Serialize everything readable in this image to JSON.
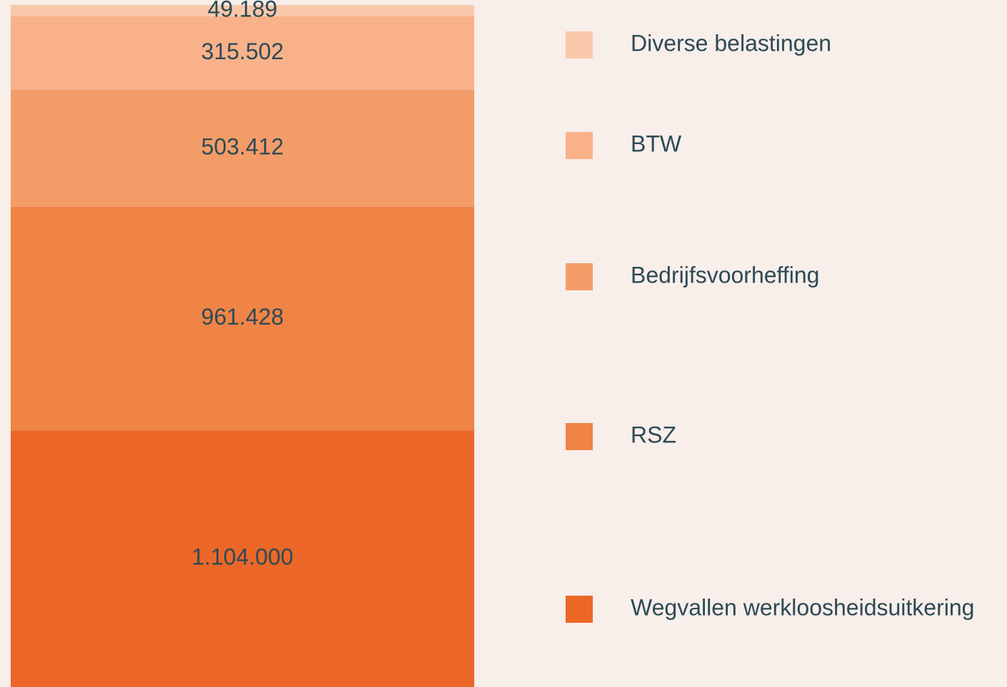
{
  "chart_data": {
    "type": "stacked-bar",
    "categories": [
      "Diverse belastingen",
      "BTW",
      "Bedrijfsvoorheffing",
      "RSZ",
      "Wegvallen werkloosheidsuitkering"
    ],
    "values": [
      49189,
      315502,
      503412,
      961428,
      1104000
    ],
    "value_labels": [
      "49.189",
      "315.502",
      "503.412",
      "961.428",
      "1.104.000"
    ],
    "colors": [
      "#f9c8aa",
      "#f8b189",
      "#f49c68",
      "#f08346",
      "#ec6727"
    ]
  }
}
